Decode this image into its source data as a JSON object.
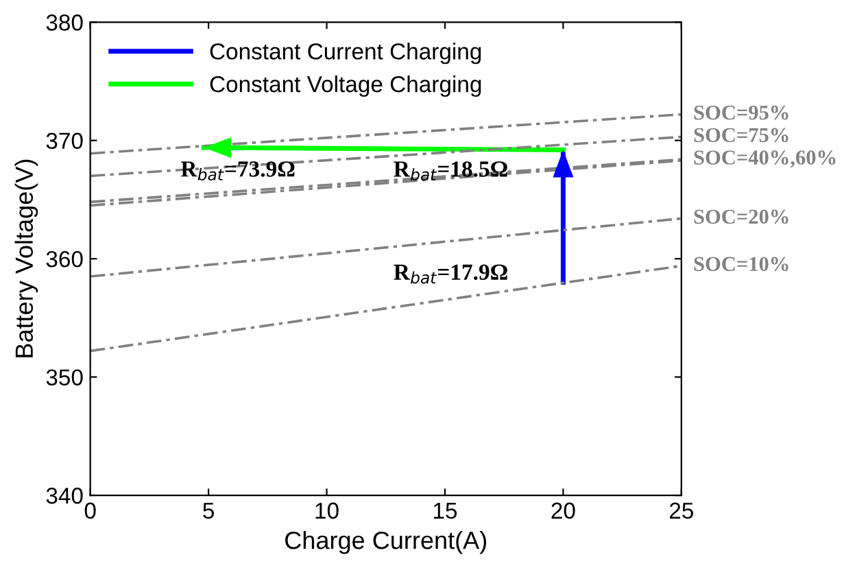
{
  "chart_data": {
    "type": "line",
    "xlabel": "Charge Current(A)",
    "ylabel": "Battery Voltage(V)",
    "xlim": [
      0,
      25
    ],
    "ylim": [
      340,
      380
    ],
    "xticks": [
      0,
      5,
      10,
      15,
      20,
      25
    ],
    "yticks": [
      340,
      350,
      360,
      370,
      380
    ],
    "grid": false,
    "legend": "top left",
    "series": [
      {
        "name": "Constant Current Charging",
        "color": "#0000ff",
        "x": [
          20,
          20
        ],
        "values": [
          358.0,
          369.2
        ],
        "line_style": "solid"
      },
      {
        "name": "Constant Voltage Charging",
        "color": "#00ff00",
        "x": [
          20,
          4.8
        ],
        "values": [
          369.2,
          369.4
        ],
        "line_style": "solid"
      },
      {
        "name": "SOC=95%",
        "color": "#808080",
        "x": [
          0,
          25
        ],
        "values": [
          368.9,
          372.2
        ],
        "line_style": "dashed"
      },
      {
        "name": "SOC=75%",
        "color": "#808080",
        "x": [
          0,
          25
        ],
        "values": [
          367.0,
          370.3
        ],
        "line_style": "dashed"
      },
      {
        "name": "SOC=40%,60%",
        "color": "#808080",
        "x": [
          0,
          25
        ],
        "values": [
          364.8,
          368.4
        ],
        "line_style": "dashed"
      },
      {
        "color": "#808080",
        "x": [
          0,
          25
        ],
        "values": [
          364.5,
          368.3
        ],
        "line_style": "dashed"
      },
      {
        "name": "SOC=20%",
        "color": "#808080",
        "x": [
          0,
          25
        ],
        "values": [
          358.5,
          363.4
        ],
        "line_style": "dashed"
      },
      {
        "name": "SOC=10%",
        "color": "#808080",
        "x": [
          0,
          25
        ],
        "values": [
          352.2,
          359.4
        ],
        "line_style": "dashed"
      }
    ],
    "annotations": [
      "R$_{bat}$=73.9Ω",
      "R$_{bat}$=18.5Ω",
      "R$_{bat}$=17.9Ω"
    ]
  }
}
